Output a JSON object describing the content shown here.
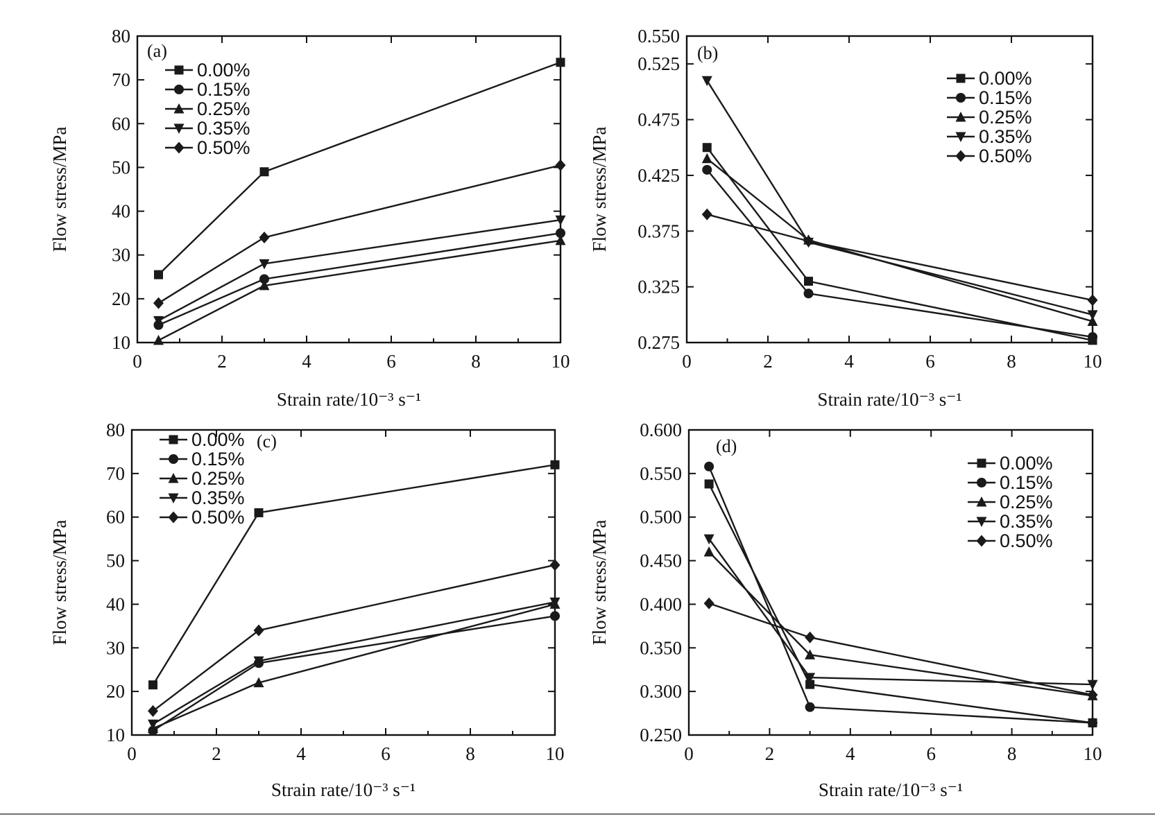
{
  "chart_data": [
    {
      "type": "line",
      "panel_label": "(a)",
      "xlabel": "Strain rate/10⁻³ s⁻¹",
      "ylabel": "Flow stress/MPa",
      "xlim": [
        0,
        10
      ],
      "ylim": [
        10,
        80
      ],
      "xticks": [
        0,
        2,
        4,
        6,
        8,
        10
      ],
      "yticks": [
        10,
        20,
        30,
        40,
        50,
        60,
        70,
        80
      ],
      "ytick_labels": [
        "10",
        "20",
        "30",
        "40",
        "50",
        "60",
        "70",
        "80"
      ],
      "legend_position": "top-left",
      "x": [
        0.5,
        3,
        10
      ],
      "series": [
        {
          "name": "0.00%",
          "marker": "square",
          "values": [
            25.5,
            49,
            74
          ]
        },
        {
          "name": "0.15%",
          "marker": "circle",
          "values": [
            14,
            24.5,
            35
          ]
        },
        {
          "name": "0.25%",
          "marker": "triangle-up",
          "values": [
            10.5,
            23,
            33.3
          ]
        },
        {
          "name": "0.35%",
          "marker": "triangle-down",
          "values": [
            15,
            28,
            38
          ]
        },
        {
          "name": "0.50%",
          "marker": "diamond",
          "values": [
            19,
            34,
            50.5
          ]
        }
      ]
    },
    {
      "type": "line",
      "panel_label": "(b)",
      "xlabel": "Strain rate/10⁻³ s⁻¹",
      "ylabel": "Flow stress/MPa",
      "xlim": [
        0,
        10
      ],
      "ylim": [
        0.275,
        0.55
      ],
      "xticks": [
        0,
        2,
        4,
        6,
        8,
        10
      ],
      "yticks": [
        0.275,
        0.325,
        0.375,
        0.425,
        0.475,
        0.525,
        0.55
      ],
      "ytick_labels": [
        "0.275",
        "0.325",
        "0.375",
        "0.425",
        "0.475",
        "0.525",
        "0.550"
      ],
      "legend_position": "top-right",
      "x": [
        0.5,
        3,
        10
      ],
      "series": [
        {
          "name": "0.00%",
          "marker": "square",
          "values": [
            0.45,
            0.33,
            0.277
          ]
        },
        {
          "name": "0.15%",
          "marker": "circle",
          "values": [
            0.43,
            0.319,
            0.28
          ]
        },
        {
          "name": "0.25%",
          "marker": "triangle-up",
          "values": [
            0.44,
            0.367,
            0.294
          ]
        },
        {
          "name": "0.35%",
          "marker": "triangle-down",
          "values": [
            0.51,
            0.365,
            0.3
          ]
        },
        {
          "name": "0.50%",
          "marker": "diamond",
          "values": [
            0.39,
            0.366,
            0.313
          ]
        }
      ]
    },
    {
      "type": "line",
      "panel_label": "(c)",
      "xlabel": "Strain rate/10⁻³ s⁻¹",
      "ylabel": "Flow stress/MPa",
      "xlim": [
        0,
        10
      ],
      "ylim": [
        10,
        80
      ],
      "xticks": [
        0,
        2,
        4,
        6,
        8,
        10
      ],
      "yticks": [
        10,
        20,
        30,
        40,
        50,
        60,
        70,
        80
      ],
      "ytick_labels": [
        "10",
        "20",
        "30",
        "40",
        "50",
        "60",
        "70",
        "80"
      ],
      "legend_position": "top-left",
      "x": [
        0.5,
        3,
        10
      ],
      "series": [
        {
          "name": "0.00%",
          "marker": "square",
          "values": [
            21.5,
            61,
            72
          ]
        },
        {
          "name": "0.15%",
          "marker": "circle",
          "values": [
            11,
            26.5,
            37.3
          ]
        },
        {
          "name": "0.25%",
          "marker": "triangle-up",
          "values": [
            11.5,
            22,
            40
          ]
        },
        {
          "name": "0.35%",
          "marker": "triangle-down",
          "values": [
            12.5,
            27,
            40.5
          ]
        },
        {
          "name": "0.50%",
          "marker": "diamond",
          "values": [
            15.5,
            34,
            49
          ]
        }
      ]
    },
    {
      "type": "line",
      "panel_label": "(d)",
      "xlabel": "Strain rate/10⁻³ s⁻¹",
      "ylabel": "Flow stress/MPa",
      "xlim": [
        0,
        10
      ],
      "ylim": [
        0.25,
        0.6
      ],
      "xticks": [
        0,
        2,
        4,
        6,
        8,
        10
      ],
      "yticks": [
        0.25,
        0.3,
        0.35,
        0.4,
        0.45,
        0.5,
        0.55,
        0.6
      ],
      "ytick_labels": [
        "0.250",
        "0.300",
        "0.350",
        "0.400",
        "0.450",
        "0.500",
        "0.550",
        "0.600"
      ],
      "legend_position": "top-right",
      "x": [
        0.5,
        3,
        10
      ],
      "series": [
        {
          "name": "0.00%",
          "marker": "square",
          "values": [
            0.538,
            0.308,
            0.264
          ]
        },
        {
          "name": "0.15%",
          "marker": "circle",
          "values": [
            0.558,
            0.282,
            0.264
          ]
        },
        {
          "name": "0.25%",
          "marker": "triangle-up",
          "values": [
            0.46,
            0.342,
            0.295
          ]
        },
        {
          "name": "0.35%",
          "marker": "triangle-down",
          "values": [
            0.475,
            0.316,
            0.308
          ]
        },
        {
          "name": "0.50%",
          "marker": "diamond",
          "values": [
            0.401,
            0.362,
            0.296
          ]
        }
      ]
    }
  ]
}
